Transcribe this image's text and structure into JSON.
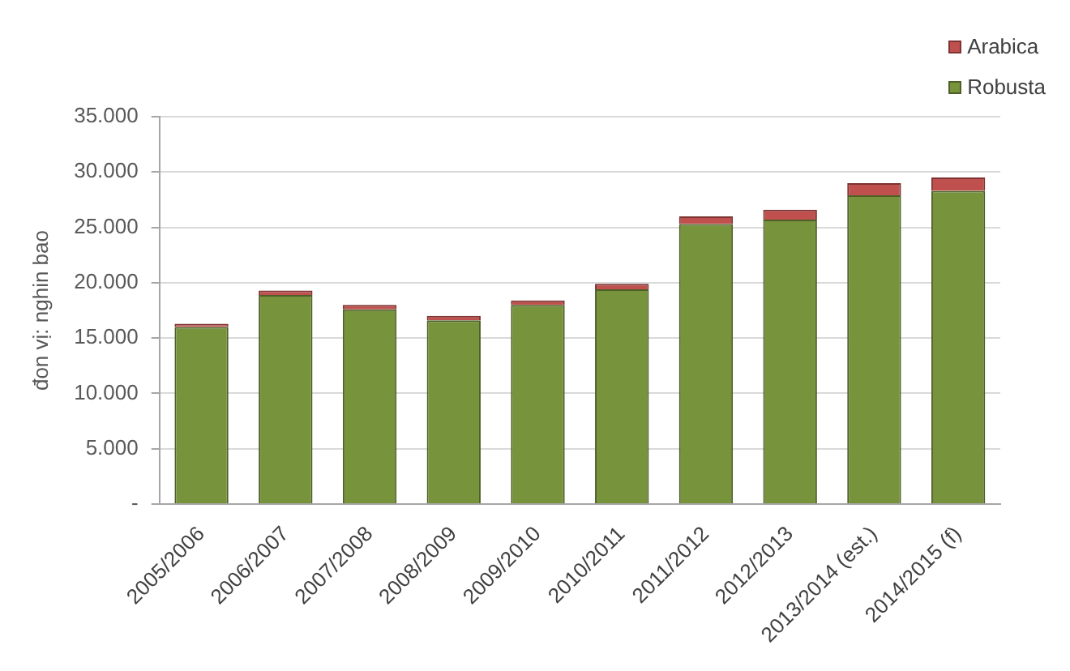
{
  "chart_data": {
    "type": "bar",
    "stacked": true,
    "ylabel": "đon vị: nghin bao",
    "categories": [
      "2005/2006",
      "2006/2007",
      "2007/2008",
      "2008/2009",
      "2009/2010",
      "2010/2011",
      "2011/2012",
      "2012/2013",
      "2013/2014 (est.)",
      "2014/2015 (f)"
    ],
    "series": [
      {
        "name": "Robusta",
        "color": "#77933c",
        "values": [
          16000,
          18900,
          17600,
          16600,
          18000,
          19400,
          25300,
          25700,
          27900,
          28300
        ]
      },
      {
        "name": "Arabica",
        "color": "#c0504d",
        "values": [
          300,
          400,
          400,
          400,
          400,
          500,
          700,
          900,
          1100,
          1200
        ]
      }
    ],
    "ylim": [
      0,
      35000
    ],
    "yticks": [
      {
        "value": 0,
        "label": "-"
      },
      {
        "value": 5000,
        "label": "5.000"
      },
      {
        "value": 10000,
        "label": "10.000"
      },
      {
        "value": 15000,
        "label": "15.000"
      },
      {
        "value": 20000,
        "label": "20.000"
      },
      {
        "value": 25000,
        "label": "25.000"
      },
      {
        "value": 30000,
        "label": "30.000"
      },
      {
        "value": 35000,
        "label": "35.000"
      }
    ],
    "grid": "y",
    "legend": "top right"
  }
}
